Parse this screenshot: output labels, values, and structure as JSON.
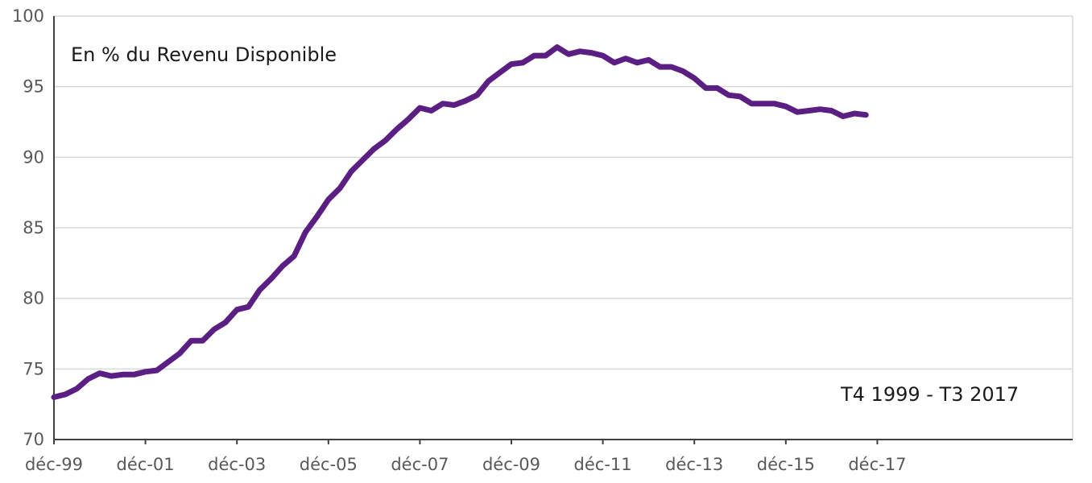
{
  "chart_data": {
    "type": "line",
    "title": "",
    "xlabel": "",
    "ylabel": "",
    "annotations": {
      "unit_note": "En % du Revenu Disponible",
      "period_note": "T4 1999 - T3 2017"
    },
    "ylim": [
      70,
      100
    ],
    "yticks": [
      70,
      75,
      80,
      85,
      90,
      95,
      100
    ],
    "xtick_labels": [
      "déc-99",
      "déc-01",
      "déc-03",
      "déc-05",
      "déc-07",
      "déc-09",
      "déc-11",
      "déc-13",
      "déc-15",
      "déc-17"
    ],
    "xtick_quarter_index": [
      0,
      8,
      16,
      24,
      32,
      40,
      48,
      56,
      64,
      72
    ],
    "grid": true,
    "colors": {
      "series": "#5b1f84",
      "grid": "#d9d9d9",
      "axis": "#404040",
      "tick_text": "#595959"
    },
    "series": [
      {
        "values": [
          73.0,
          73.2,
          73.6,
          74.3,
          74.7,
          74.5,
          74.6,
          74.6,
          74.8,
          74.9,
          75.5,
          76.1,
          77.0,
          77.0,
          77.8,
          78.3,
          79.2,
          79.4,
          80.6,
          81.4,
          82.3,
          83.0,
          84.7,
          85.8,
          87.0,
          87.8,
          89.0,
          89.8,
          90.6,
          91.2,
          92.0,
          92.7,
          93.5,
          93.3,
          93.8,
          93.7,
          94.0,
          94.4,
          95.4,
          96.0,
          96.6,
          96.7,
          97.2,
          97.2,
          97.8,
          97.3,
          97.5,
          97.4,
          97.2,
          96.7,
          97.0,
          96.7,
          96.9,
          96.4,
          96.4,
          96.1,
          95.6,
          94.9,
          94.9,
          94.4,
          94.3,
          93.8,
          93.8,
          93.8,
          93.6,
          93.2,
          93.3,
          93.4,
          93.3,
          92.9,
          93.1,
          93.0
        ]
      }
    ]
  }
}
